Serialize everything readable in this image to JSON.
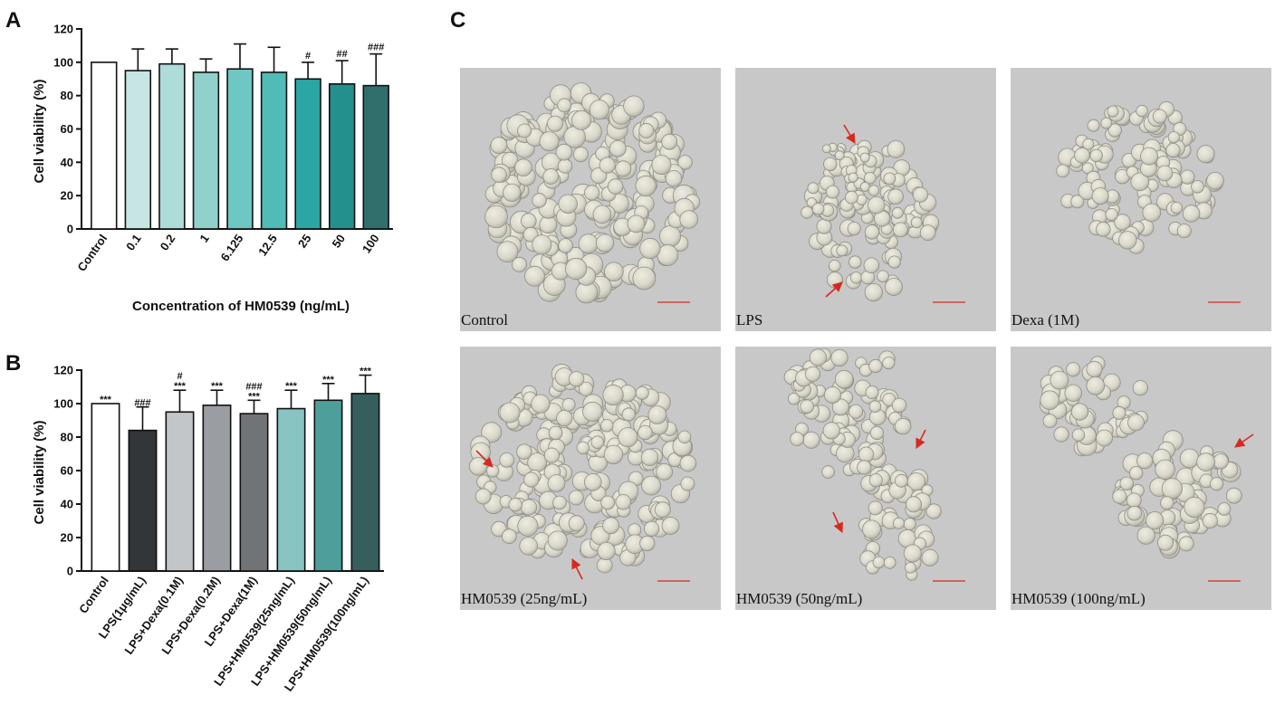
{
  "panels": {
    "a_letter": "A",
    "b_letter": "B",
    "c_letter": "C"
  },
  "chart_data": [
    {
      "type": "bar",
      "panel": "A",
      "categories": [
        "Control",
        "0.1",
        "0.2",
        "1",
        "6.125",
        "12.5",
        "25",
        "50",
        "100"
      ],
      "values": [
        100,
        95,
        99,
        94,
        96,
        94,
        90,
        87,
        86
      ],
      "errors": [
        0,
        13,
        9,
        8,
        15,
        15,
        10,
        14,
        19
      ],
      "significance": [
        "",
        "",
        "",
        "",
        "",
        "",
        "#",
        "##",
        "###"
      ],
      "colors": [
        "#ffffff",
        "#c6e5e3",
        "#aedcd9",
        "#90d1cc",
        "#6ec7c3",
        "#50bbb7",
        "#2ba6a4",
        "#23908e",
        "#316f6d"
      ],
      "xlabel": "Concentration of HM0539 (ng/mL)",
      "ylabel": "Cell viability (%)",
      "ylim": [
        0,
        120
      ],
      "yticks": [
        0,
        20,
        40,
        60,
        80,
        100,
        120
      ]
    },
    {
      "type": "bar",
      "panel": "B",
      "categories": [
        "Control",
        "LPS(1μg/mL)",
        "LPS+Dexa(0.1M)",
        "LPS+Dexa(0.2M)",
        "LPS+Dexa(1M)",
        "LPS+HM0539(25ng/mL)",
        "LPS+HM0539(50ng/mL)",
        "LPS+HM0539(100ng/mL)"
      ],
      "values": [
        100,
        84,
        95,
        99,
        94,
        97,
        102,
        106
      ],
      "errors": [
        0,
        14,
        13,
        9,
        8,
        11,
        10,
        11
      ],
      "significance_top": [
        "",
        "",
        "#",
        "",
        "###",
        "",
        "",
        ""
      ],
      "significance_bottom": [
        "***",
        "###",
        "***",
        "***",
        "***",
        "***",
        "***",
        "***"
      ],
      "colors": [
        "#ffffff",
        "#333638",
        "#c3c6c9",
        "#9a9ea2",
        "#707477",
        "#88c4c1",
        "#4e9f9b",
        "#355e5c"
      ],
      "xlabel": "",
      "ylabel": "Cell viability (%)",
      "ylim": [
        0,
        120
      ],
      "yticks": [
        0,
        20,
        40,
        60,
        80,
        100,
        120
      ]
    }
  ],
  "micrographs": [
    {
      "caption": "Control"
    },
    {
      "caption": "LPS"
    },
    {
      "caption": "Dexa (1M)"
    },
    {
      "caption": "HM0539 (25ng/mL)"
    },
    {
      "caption": "HM0539 (50ng/mL)"
    },
    {
      "caption": "HM0539 (100ng/mL)"
    }
  ]
}
